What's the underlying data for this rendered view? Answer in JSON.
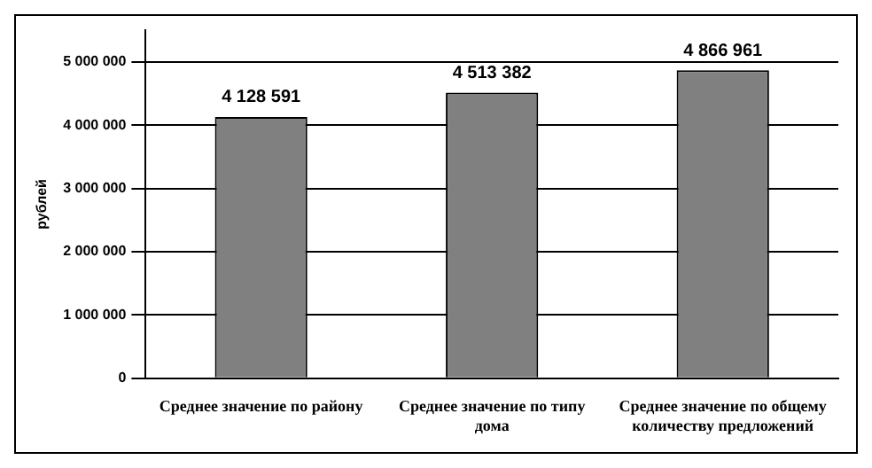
{
  "chart_data": {
    "type": "bar",
    "ylabel": "рублей",
    "categories": [
      "Среднее значение по району",
      "Среднее значение по типу дома",
      "Среднее значение по общему количеству предложений"
    ],
    "values": [
      4128591,
      4513382,
      4866961
    ],
    "value_labels": [
      "4 128 591",
      "4 513 382",
      "4 866 961"
    ],
    "color": "#808080",
    "ylim": [
      0,
      5500000
    ],
    "yticks": [
      {
        "value": 0,
        "label": "0"
      },
      {
        "value": 1000000,
        "label": "1 000 000"
      },
      {
        "value": 2000000,
        "label": "2 000 000"
      },
      {
        "value": 3000000,
        "label": "3 000 000"
      },
      {
        "value": 4000000,
        "label": "4 000 000"
      },
      {
        "value": 5000000,
        "label": "5 000 000"
      }
    ],
    "grid": "y",
    "legend": false
  }
}
